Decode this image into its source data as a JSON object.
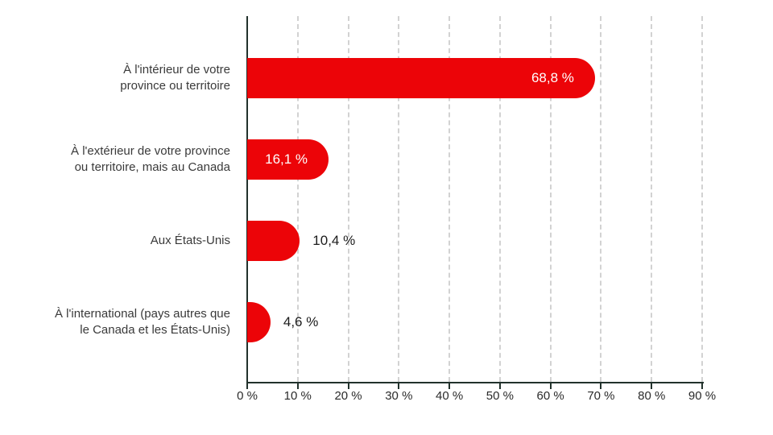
{
  "chart_data": {
    "type": "bar",
    "orientation": "horizontal",
    "title": "",
    "categories": [
      "À l'intérieur de votre province ou territoire",
      "À l'extérieur de votre province ou territoire, mais au Canada",
      "Aux États-Unis",
      "À l'international (pays autres que le Canada et les États-Unis)"
    ],
    "category_lines": [
      [
        "À l'intérieur de votre",
        "province ou territoire"
      ],
      [
        "À l'extérieur de votre province",
        "ou territoire, mais au Canada"
      ],
      [
        "Aux États-Unis"
      ],
      [
        "À l'international (pays autres que",
        "le Canada et les États-Unis)"
      ]
    ],
    "values": [
      68.8,
      16.1,
      10.4,
      4.6
    ],
    "value_labels": [
      "68,8 %",
      "16,1 %",
      "10,4 %",
      "4,6 %"
    ],
    "value_label_inside": [
      true,
      true,
      false,
      false
    ],
    "xlim": [
      0,
      90
    ],
    "x_ticks": [
      0,
      10,
      20,
      30,
      40,
      50,
      60,
      70,
      80,
      90
    ],
    "x_tick_labels": [
      "0 %",
      "10 %",
      "20 %",
      "30 %",
      "40 %",
      "50 %",
      "60 %",
      "70 %",
      "80 %",
      "90 %"
    ],
    "xlabel": "",
    "ylabel": "",
    "legend": null,
    "grid": "vertical-dashed",
    "colors": {
      "bar": "#ec0408",
      "axis": "#22322c",
      "gridline": "#d2d2d2",
      "category_label": "#3a3a3a",
      "tick_label": "#2b2b2b",
      "value_inside": "#ffffff",
      "value_outside": "#1c1c1c"
    }
  }
}
